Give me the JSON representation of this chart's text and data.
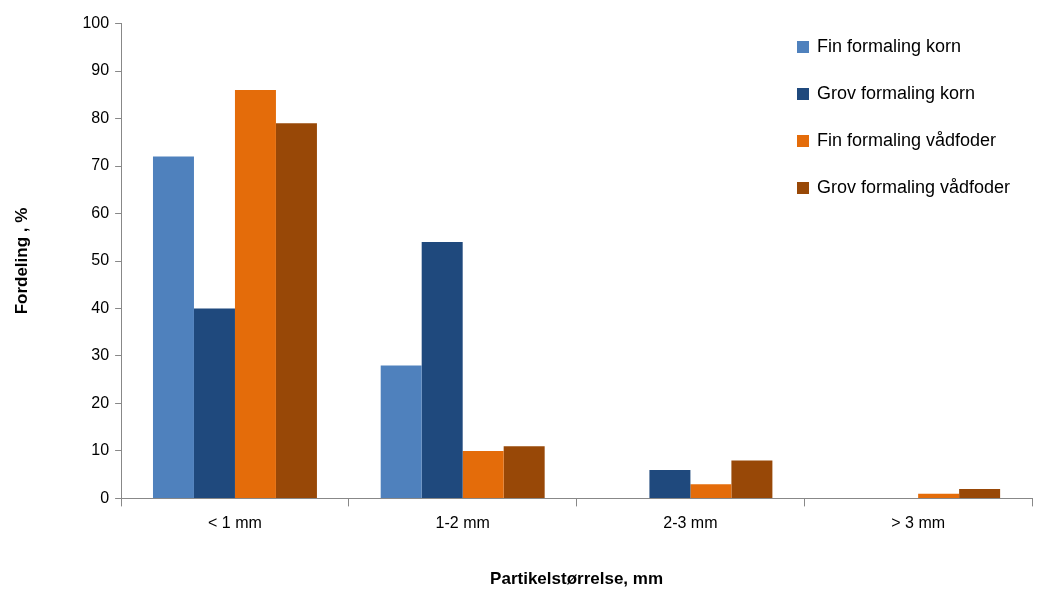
{
  "chart_data": {
    "type": "bar",
    "xlabel": "Partikelstørrelse, mm",
    "ylabel": "Fordeling , %",
    "categories": [
      "< 1 mm",
      "1-2 mm",
      "2-3 mm",
      "> 3 mm"
    ],
    "series": [
      {
        "name": "Fin formaling korn",
        "color": "#4f81bd",
        "values": [
          72,
          28,
          0,
          0
        ]
      },
      {
        "name": "Grov formaling korn",
        "color": "#1f497d",
        "values": [
          40,
          54,
          6,
          0
        ]
      },
      {
        "name": "Fin formaling vådfoder",
        "color": "#e46c0a",
        "values": [
          86,
          10,
          3,
          1
        ]
      },
      {
        "name": "Grov formaling vådfoder",
        "color": "#984807",
        "values": [
          79,
          11,
          8,
          2
        ]
      }
    ],
    "ylim": [
      0,
      100
    ],
    "yticks": [
      0,
      10,
      20,
      30,
      40,
      50,
      60,
      70,
      80,
      90,
      100
    ],
    "grid": false,
    "legend": "top right"
  }
}
